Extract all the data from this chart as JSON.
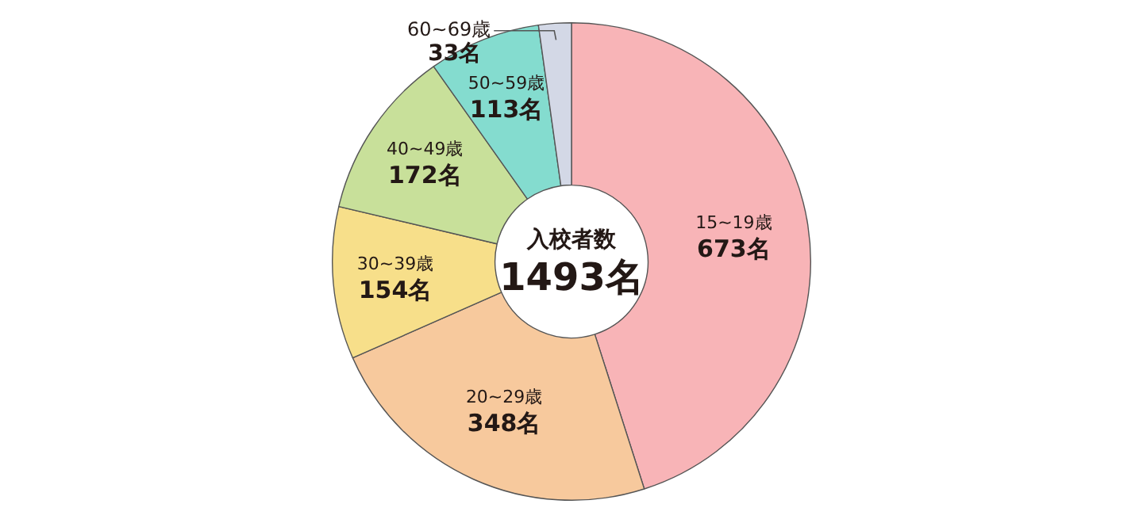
{
  "chart_data": {
    "type": "donut",
    "title": "入校者数",
    "annotations": [
      "1493名"
    ],
    "categories": [
      "15~19歳",
      "20~29歳",
      "30~39歳",
      "40~49歳",
      "50~59歳",
      "60~69歳"
    ],
    "values": [
      673,
      348,
      154,
      172,
      113,
      33
    ],
    "value_labels": [
      "673名",
      "348名",
      "154名",
      "172名",
      "113名",
      "33名"
    ],
    "colors": [
      "#f8b4b7",
      "#f7c99d",
      "#f7df8a",
      "#c8e09a",
      "#84dccf",
      "#d3d8e6"
    ],
    "legend": false
  }
}
